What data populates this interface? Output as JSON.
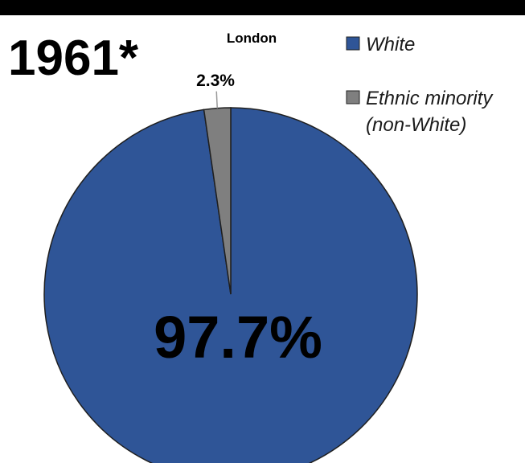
{
  "chart_data": {
    "type": "pie",
    "title": "1961*",
    "subtitle": "London",
    "slices": [
      {
        "label": "White",
        "value": 97.7,
        "display": "97.7%",
        "color": "#2f5597"
      },
      {
        "label": "Ethnic minority (non-White)",
        "label_lines": [
          "Ethnic minority",
          "(non-White)"
        ],
        "value": 2.3,
        "display": "2.3%",
        "color": "#7f7f7f"
      }
    ],
    "legend_position": "top-right"
  }
}
